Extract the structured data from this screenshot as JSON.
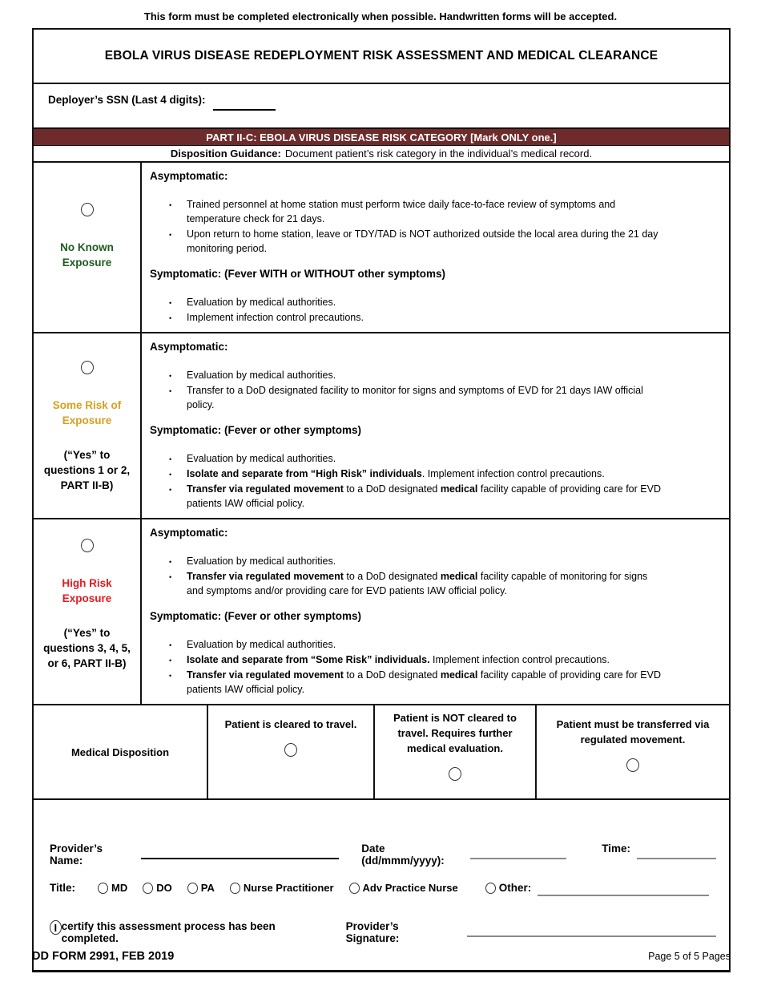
{
  "colors": {
    "part_bar_bg": "#6e2b2b",
    "no_known": "#1d5c1d",
    "some_risk": "#d8a01d",
    "high_risk": "#e8191f"
  },
  "header": {
    "note": "This form must be completed electronically when possible.  Handwritten forms will be accepted.",
    "title": "EBOLA VIRUS DISEASE REDEPLOYMENT RISK ASSESSMENT AND MEDICAL CLEARANCE",
    "ssn_label": "Deployer’s SSN (Last 4 digits):",
    "part_header": "PART II-C: EBOLA VIRUS DISEASE RISK CATEGORY [Mark ONLY one.]",
    "guidance_label": "Disposition Guidance:",
    "guidance_text": "Document patient’s risk category in the individual’s medical record."
  },
  "risk_rows": [
    {
      "label": "No Known Exposure",
      "label_color": "#1d5c1d",
      "note": "",
      "sections": [
        {
          "heading": "Asymptomatic:",
          "bullets": [
            [
              {
                "t": "Trained personnel at home station must perform twice daily face-to-face review of symptoms and temperature check for 21 days."
              }
            ],
            [
              {
                "t": "Upon return to home station, leave or TDY/TAD is NOT authorized outside the local area during the 21 day monitoring period."
              }
            ]
          ]
        },
        {
          "heading": "Symptomatic: (Fever WITH or WITHOUT other symptoms)",
          "bullets": [
            [
              {
                "t": "Evaluation by medical authorities."
              }
            ],
            [
              {
                "t": "Implement infection control precautions."
              }
            ]
          ]
        }
      ]
    },
    {
      "label": "Some Risk of Exposure",
      "label_color": "#d8a01d",
      "note": "(“Yes” to questions 1 or 2, PART II-B)",
      "sections": [
        {
          "heading": "Asymptomatic:",
          "bullets": [
            [
              {
                "t": "Evaluation by medical authorities."
              }
            ],
            [
              {
                "t": "Transfer to a DoD designated facility to monitor for signs and symptoms of EVD for 21 days IAW official policy."
              }
            ]
          ]
        },
        {
          "heading": "Symptomatic: (Fever or other symptoms)",
          "bullets": [
            [
              {
                "t": "Evaluation by medical authorities."
              }
            ],
            [
              {
                "t": "Isolate and separate from “High Risk” individuals",
                "b": true
              },
              {
                "t": ".  Implement infection control precautions."
              }
            ],
            [
              {
                "t": "Transfer via regulated movement",
                "b": true
              },
              {
                "t": " to a DoD designated "
              },
              {
                "t": "medical",
                "b": true
              },
              {
                "t": " facility capable of providing care for EVD patients IAW official policy."
              }
            ]
          ]
        }
      ]
    },
    {
      "label": "High Risk Exposure",
      "label_color": "#e8191f",
      "note": "(“Yes” to questions 3, 4, 5, or 6, PART II-B)",
      "sections": [
        {
          "heading": "Asymptomatic:",
          "bullets": [
            [
              {
                "t": "Evaluation by medical authorities."
              }
            ],
            [
              {
                "t": "Transfer via regulated movement",
                "b": true
              },
              {
                "t": " to a DoD designated "
              },
              {
                "t": "medical",
                "b": true
              },
              {
                "t": " facility capable of monitoring for signs and symptoms and/or providing care for EVD patients IAW official policy."
              }
            ]
          ]
        },
        {
          "heading": "Symptomatic: (Fever or other symptoms)",
          "bullets": [
            [
              {
                "t": "Evaluation by medical authorities."
              }
            ],
            [
              {
                "t": "Isolate and separate from “Some Risk” individuals.",
                "b": true
              },
              {
                "t": " Implement infection control precautions."
              }
            ],
            [
              {
                "t": "Transfer via regulated movement",
                "b": true
              },
              {
                "t": " to a DoD designated "
              },
              {
                "t": "medical",
                "b": true
              },
              {
                "t": " facility capable of providing care for EVD patients IAW official policy."
              }
            ]
          ]
        }
      ]
    }
  ],
  "disposition": {
    "label": "Medical Disposition",
    "options": [
      "Patient is cleared to travel.",
      "Patient is NOT cleared to travel.  Requires further medical evaluation.",
      "Patient must be transferred via regulated movement."
    ]
  },
  "provider": {
    "name_label": "Provider’s Name:",
    "date_label": "Date (dd/mmm/yyyy):",
    "time_label": "Time:",
    "title_label": "Title:",
    "title_options": [
      "MD",
      "DO",
      "PA",
      "Nurse Practitioner",
      "Adv Practice Nurse"
    ],
    "other_label": "Other:",
    "certify_i": "I",
    "certify_text": "certify this assessment process has been completed.",
    "signature_label": "Provider’s Signature:"
  },
  "footer": {
    "form_number": "DD FORM 2991, FEB 2019",
    "page_info": "Page 5 of 5 Pages"
  }
}
